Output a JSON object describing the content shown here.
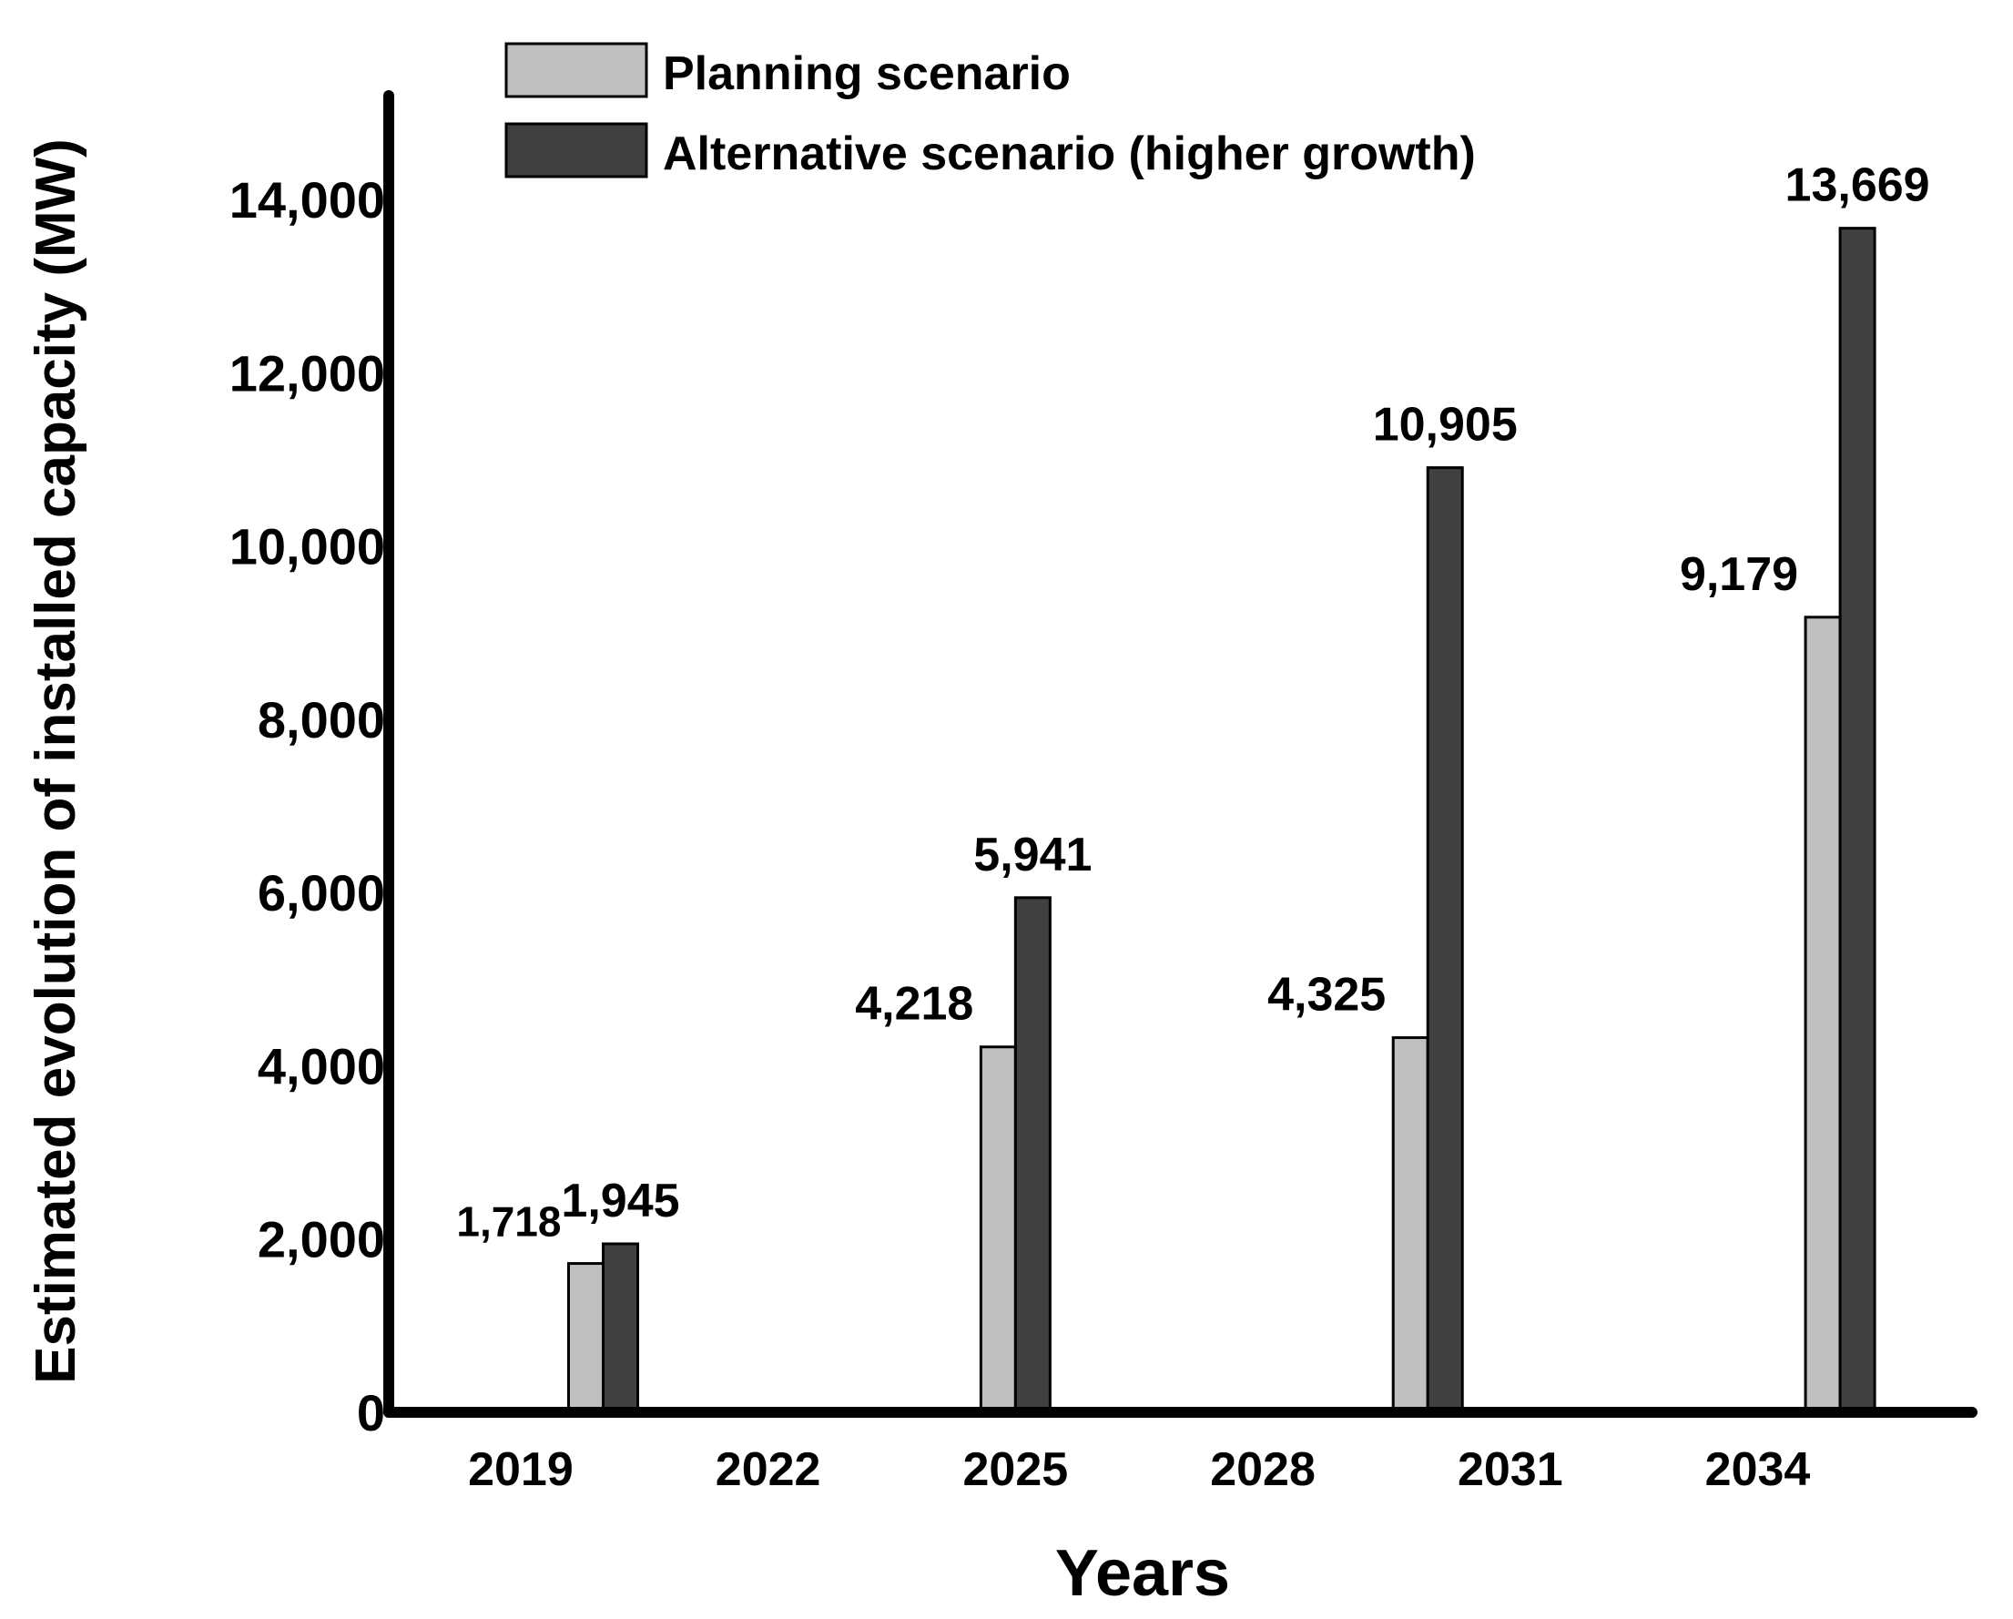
{
  "chart_data": {
    "type": "bar",
    "title": "",
    "xlabel": "Years",
    "ylabel": "Estimated evolution of installed capacity (MW)",
    "x_ticks": [
      "2019",
      "2022",
      "2025",
      "2028",
      "2031",
      "2034"
    ],
    "y_ticks": [
      "0",
      "2,000",
      "4,000",
      "6,000",
      "8,000",
      "10,000",
      "12,000",
      "14,000"
    ],
    "xlim": [
      2017.4,
      2036.6
    ],
    "ylim": [
      0,
      15200
    ],
    "grid": false,
    "legend_position": "top-center",
    "series": [
      {
        "name": "Planning scenario",
        "color": "#c0c0c0",
        "points": [
          {
            "year": 2020,
            "value": 1718,
            "label": "1,718"
          },
          {
            "year": 2025,
            "value": 4218,
            "label": "4,218"
          },
          {
            "year": 2030,
            "value": 4325,
            "label": "4,325"
          },
          {
            "year": 2035,
            "value": 9179,
            "label": "9,179"
          }
        ]
      },
      {
        "name": "Alternative scenario (higher growth)",
        "color": "#404040",
        "points": [
          {
            "year": 2020,
            "value": 1945,
            "label": "1,945"
          },
          {
            "year": 2025,
            "value": 5941,
            "label": "5,941"
          },
          {
            "year": 2030,
            "value": 10905,
            "label": "10,905"
          },
          {
            "year": 2035,
            "value": 13669,
            "label": "13,669"
          }
        ]
      }
    ]
  }
}
